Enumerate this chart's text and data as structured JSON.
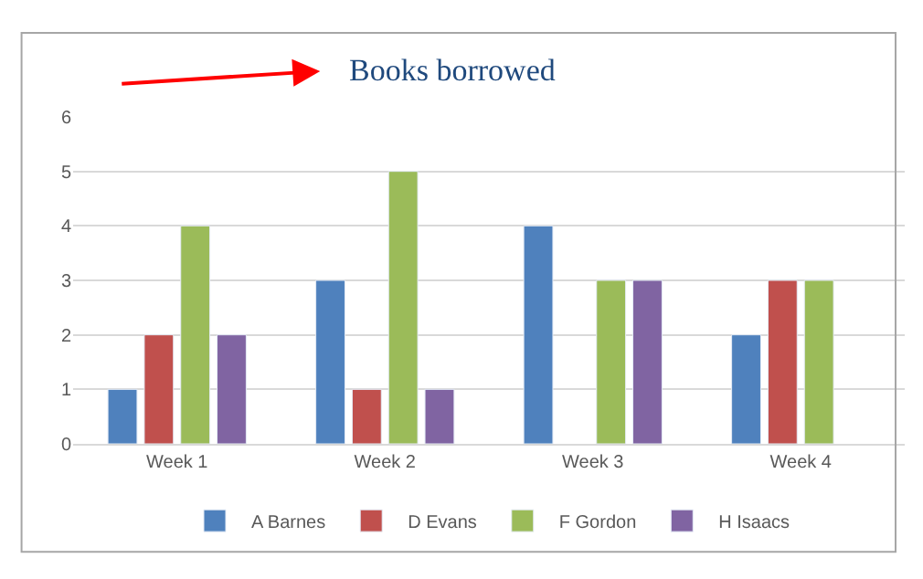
{
  "chart_data": {
    "type": "bar",
    "title": "Books borrowed",
    "categories": [
      "Week 1",
      "Week 2",
      "Week 3",
      "Week 4"
    ],
    "series": [
      {
        "name": "A Barnes",
        "color": "#4f81bd",
        "values": [
          1,
          3,
          4,
          2
        ]
      },
      {
        "name": "D Evans",
        "color": "#c0504d",
        "values": [
          2,
          1,
          null,
          3
        ]
      },
      {
        "name": "F Gordon",
        "color": "#9bbb59",
        "values": [
          4,
          5,
          3,
          3
        ]
      },
      {
        "name": "H Isaacs",
        "color": "#8064a2",
        "values": [
          2,
          1,
          3,
          null
        ]
      }
    ],
    "ylim": [
      0,
      6
    ],
    "yticks": [
      0,
      1,
      2,
      3,
      4,
      5,
      6
    ],
    "grid": "y",
    "legend": "bottom"
  }
}
